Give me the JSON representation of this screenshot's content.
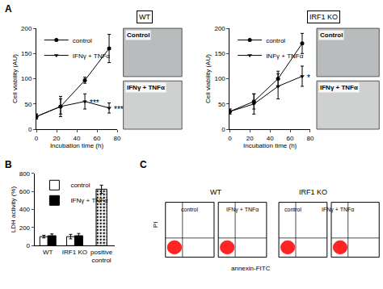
{
  "panel_labels": [
    "A",
    "B",
    "C"
  ],
  "chart_data": [
    {
      "type": "line",
      "title": "WT",
      "xlabel": "Incubation time (h)",
      "ylabel": "Cell viability (AU)",
      "xlim": [
        0,
        80
      ],
      "xticks": [
        0,
        20,
        40,
        60,
        80
      ],
      "ylim": [
        0,
        200
      ],
      "yticks": [
        0,
        50,
        100,
        150,
        200
      ],
      "legend": "upper left",
      "grid": false,
      "series": [
        {
          "name": "control",
          "color": "#000000",
          "marker": "circle",
          "x": [
            0,
            24,
            48,
            72
          ],
          "values": [
            25,
            45,
            97,
            160
          ],
          "errors": [
            5,
            15,
            6,
            28
          ]
        },
        {
          "name": "IFNγ + TNFα",
          "color": "#000000",
          "marker": "triangle-down",
          "x": [
            0,
            24,
            48,
            72
          ],
          "values": [
            25,
            45,
            55,
            42
          ],
          "errors": [
            5,
            20,
            15,
            10
          ]
        }
      ],
      "annotations": [
        {
          "x": 48,
          "text": "***"
        },
        {
          "x": 72,
          "text": "***"
        }
      ],
      "images": [
        "Control",
        "IFNγ + TNFα"
      ]
    },
    {
      "type": "line",
      "title": "IRF1 KO",
      "xlabel": "Incubation time (h)",
      "ylabel": "Cell viability (AU)",
      "xlim": [
        0,
        80
      ],
      "xticks": [
        0,
        20,
        40,
        60,
        80
      ],
      "ylim": [
        0,
        200
      ],
      "yticks": [
        0,
        50,
        100,
        150,
        200
      ],
      "legend": "upper left",
      "grid": false,
      "series": [
        {
          "name": "control",
          "color": "#000000",
          "marker": "circle",
          "x": [
            0,
            24,
            48,
            72
          ],
          "values": [
            35,
            55,
            100,
            170
          ],
          "errors": [
            5,
            15,
            15,
            20
          ]
        },
        {
          "name": "INFγ + TNFα",
          "color": "#000000",
          "marker": "triangle-down",
          "x": [
            0,
            24,
            48,
            72
          ],
          "values": [
            35,
            50,
            85,
            105
          ],
          "errors": [
            5,
            20,
            25,
            20
          ]
        }
      ],
      "annotations": [
        {
          "x": 72,
          "text": "*"
        }
      ],
      "images": [
        "Control",
        "IFNγ + TNFα"
      ]
    },
    {
      "type": "bar",
      "categories": [
        "WT",
        "IRF1 KO",
        "positive control"
      ],
      "ylabel": "LDH activity (%)",
      "ylim": [
        0,
        800
      ],
      "yticks": [
        0,
        200,
        400,
        600,
        800
      ],
      "legend": "upper left",
      "grid": false,
      "series": [
        {
          "name": "control",
          "color": "#ffffff",
          "values": [
            100,
            100,
            null
          ],
          "errors": [
            15,
            25,
            null
          ]
        },
        {
          "name": "IFNγ + TNFα",
          "color": "#000000",
          "values": [
            110,
            110,
            null
          ],
          "errors": [
            20,
            25,
            null
          ]
        },
        {
          "color": "#ffffff",
          "marker": "dotted",
          "values": [
            null,
            null,
            625
          ],
          "errors": [
            null,
            null,
            45
          ]
        }
      ]
    },
    {
      "type": "scatter",
      "xlabel": "annexin-FITC",
      "ylabel": "PI",
      "tick_labels": false,
      "color": "#ff0000",
      "groups": [
        {
          "title": "WT",
          "panels": [
            "control",
            "IFNγ + TNFα"
          ]
        },
        {
          "title": "IRF1 KO",
          "panels": [
            "control",
            "IFNγ + TNFα"
          ]
        }
      ]
    }
  ]
}
